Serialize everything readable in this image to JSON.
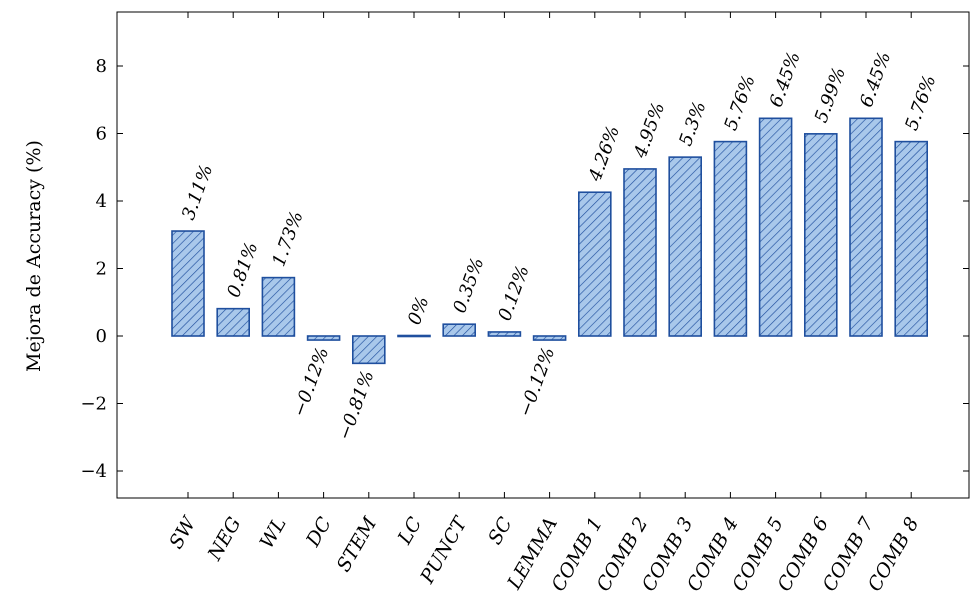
{
  "chart_data": {
    "type": "bar",
    "categories": [
      "SW",
      "NEG",
      "WL",
      "DC",
      "STEM",
      "LC",
      "PUNCT",
      "SC",
      "LEMMA",
      "COMB 1",
      "COMB 2",
      "COMB 3",
      "COMB 4",
      "COMB 5",
      "COMB 6",
      "COMB 7",
      "COMB 8"
    ],
    "values": [
      3.11,
      0.81,
      1.73,
      -0.12,
      -0.81,
      0,
      0.35,
      0.12,
      -0.12,
      4.26,
      4.95,
      5.3,
      5.76,
      6.45,
      5.99,
      6.45,
      5.76
    ],
    "data_labels": [
      "3.11%",
      "0.81%",
      "1.73%",
      "−0.12%",
      "−0.81%",
      "0%",
      "0.35%",
      "0.12%",
      "−0.12%",
      "4.26%",
      "4.95%",
      "5.3%",
      "5.76%",
      "6.45%",
      "5.99%",
      "6.45%",
      "5.76%"
    ],
    "title": "",
    "xlabel": "",
    "ylabel": "Mejora de Accuracy (%)",
    "ylim": [
      -4.8,
      9.6
    ],
    "yticks": [
      -4,
      -2,
      0,
      2,
      4,
      6,
      8
    ],
    "ytick_labels": [
      "−4",
      "−2",
      "0",
      "2",
      "4",
      "6",
      "8"
    ],
    "grid": false,
    "bar_fill": "#a9c8eb",
    "bar_stroke": "#1f4f9e",
    "hatch": "diagonal"
  }
}
